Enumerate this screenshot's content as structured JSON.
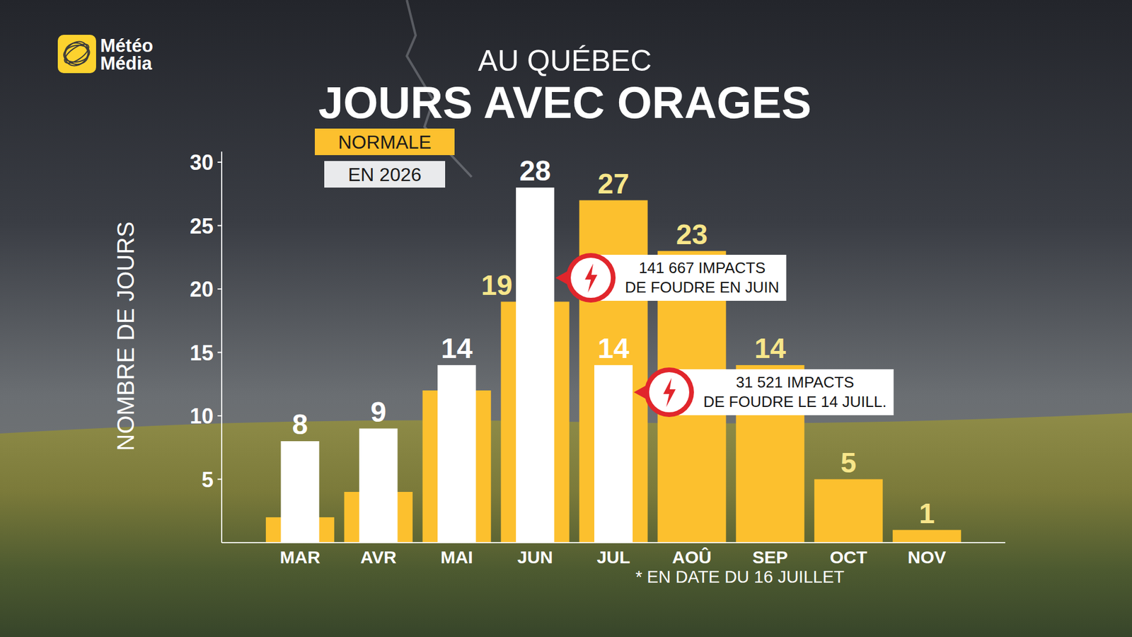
{
  "header": {
    "logo": [
      "Météo",
      "Média"
    ]
  },
  "chart_data": {
    "type": "bar",
    "subtitle": "AU QUÉBEC",
    "title": "JOURS AVEC ORAGES",
    "y_label": "NOMBRE DE JOURS",
    "categories": [
      "MAR",
      "AVR",
      "MAI",
      "JUN",
      "JUL",
      "AOÛ",
      "SEP",
      "OCT",
      "NOV"
    ],
    "series": [
      {
        "name": "NORMALE",
        "color": "#fcc02e",
        "values": [
          2,
          4,
          12,
          19,
          27,
          23,
          14,
          5,
          1
        ],
        "value_labels": [
          null,
          null,
          null,
          "19",
          "27",
          "23",
          "14",
          "5",
          "1"
        ]
      },
      {
        "name": "EN 2026",
        "color": "#ffffff",
        "values": [
          8,
          9,
          14,
          28,
          14,
          null,
          null,
          null,
          null
        ]
      }
    ],
    "ylim": [
      0,
      30
    ],
    "yticks": [
      5,
      10,
      15,
      20,
      25,
      30
    ],
    "grid": false,
    "legend": "top-left",
    "data_labels": true,
    "annotations": [
      {
        "text": [
          "141 667 IMPACTS",
          "DE FOUDRE EN JUIN"
        ],
        "category": "JUN",
        "series": "EN 2026"
      },
      {
        "text": [
          "31 521 IMPACTS",
          "DE FOUDRE LE 14 JUILL."
        ],
        "category": "JUL",
        "series": "EN 2026"
      }
    ],
    "footnote": "* EN DATE DU 16 JUILLET"
  }
}
